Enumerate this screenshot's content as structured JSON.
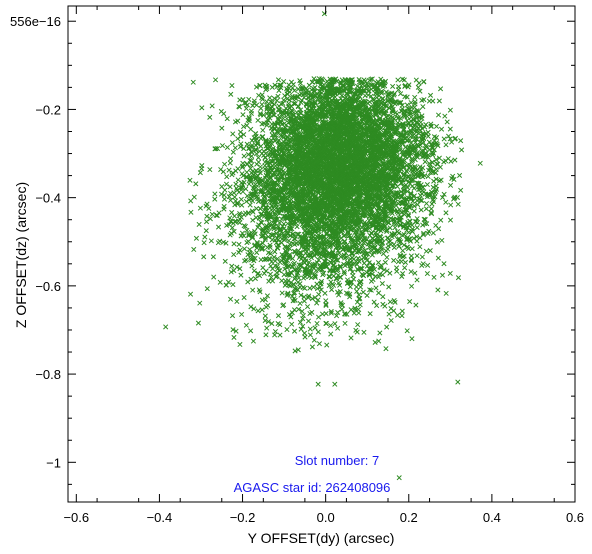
{
  "chart_data": {
    "type": "scatter",
    "title": "",
    "xlabel": "Y OFFSET(dy) (arcsec)",
    "ylabel": "Z OFFSET(dz) (arcsec)",
    "xlim": [
      -0.62,
      0.6
    ],
    "ylim": [
      -1.09,
      0.0345
    ],
    "x_ticks": [
      -0.6,
      -0.4,
      -0.2,
      0,
      0.2,
      0.4,
      0.6
    ],
    "x_tick_labels": [
      "−0.6",
      "−0.4",
      "−0.2",
      "0.0",
      "0.2",
      "0.4",
      "0.6"
    ],
    "y_ticks": [
      -1.0,
      -0.8,
      -0.6,
      -0.4,
      -0.2,
      5.56e-14
    ],
    "y_tick_labels": [
      "−1",
      "−0.8",
      "−0.6",
      "−0.4",
      "−0.2",
      "556e−16"
    ],
    "grid": false,
    "marker": "x",
    "color": "#2e8b22",
    "series": [
      {
        "cluster": {
          "center": [
            0.04,
            -0.31
          ],
          "sigma": [
            0.105,
            0.105
          ],
          "count": 5200,
          "note": "dense core of points"
        },
        "spread": {
          "center": [
            -0.02,
            -0.45
          ],
          "sigma": [
            0.12,
            0.12
          ],
          "count": 1800
        },
        "outliers": [
          {
            "x": -0.003,
            "y": 0.017
          },
          {
            "x": -0.265,
            "y": -0.133
          },
          {
            "x": -0.385,
            "y": -0.693
          },
          {
            "x": -0.275,
            "y": -0.498
          },
          {
            "x": 0.372,
            "y": -0.322
          },
          {
            "x": 0.318,
            "y": -0.818
          },
          {
            "x": 0.177,
            "y": -1.035
          },
          {
            "x": -0.018,
            "y": -0.823
          },
          {
            "x": 0.022,
            "y": -0.823
          },
          {
            "x": 0.29,
            "y": -0.617
          }
        ]
      }
    ],
    "annotations": [
      {
        "text": "Slot number: 7",
        "color": "#1a1aee"
      },
      {
        "text": "AGASC star id: 262408096",
        "color": "#1a1aee"
      }
    ]
  }
}
